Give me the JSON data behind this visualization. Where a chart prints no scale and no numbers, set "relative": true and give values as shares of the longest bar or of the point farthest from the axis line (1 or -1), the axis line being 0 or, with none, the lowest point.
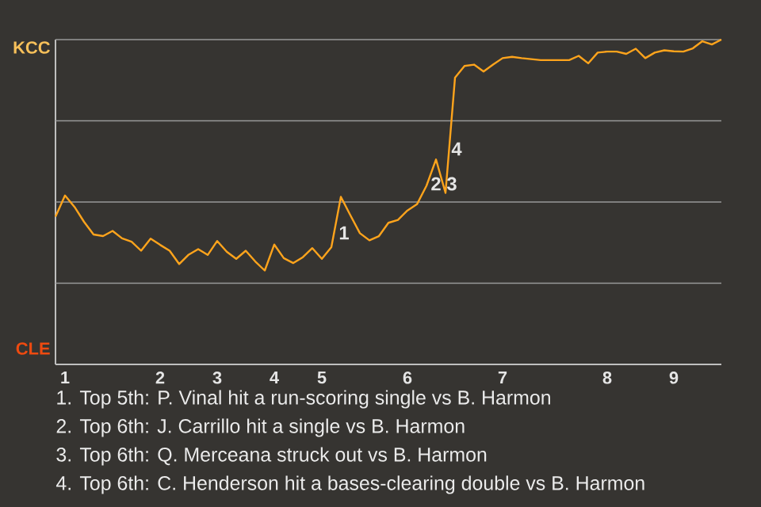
{
  "chart_data": {
    "type": "line",
    "relative": true,
    "categories": [
      null,
      "1",
      null,
      null,
      null,
      null,
      null,
      null,
      null,
      null,
      null,
      "2",
      null,
      null,
      null,
      null,
      null,
      "3",
      null,
      null,
      null,
      null,
      null,
      "4",
      null,
      null,
      null,
      null,
      "5",
      null,
      null,
      null,
      null,
      null,
      null,
      null,
      null,
      "6",
      null,
      null,
      null,
      null,
      null,
      null,
      null,
      null,
      null,
      "7",
      null,
      null,
      null,
      null,
      null,
      null,
      null,
      null,
      null,
      null,
      "8",
      null,
      null,
      null,
      null,
      null,
      null,
      "9",
      null,
      null,
      null,
      null,
      null
    ],
    "series": [
      {
        "color": "#ffa41c",
        "values": [
          0.455,
          0.52,
          0.485,
          0.439,
          0.4,
          0.395,
          0.411,
          0.388,
          0.378,
          0.35,
          0.387,
          0.368,
          0.35,
          0.309,
          0.338,
          0.355,
          0.337,
          0.38,
          0.347,
          0.325,
          0.35,
          0.317,
          0.289,
          0.369,
          0.327,
          0.312,
          0.33,
          0.358,
          0.325,
          0.361,
          0.516,
          0.459,
          0.404,
          0.382,
          0.395,
          0.436,
          0.445,
          0.474,
          0.493,
          0.55,
          0.631,
          0.528,
          0.883,
          0.919,
          0.923,
          0.902,
          0.923,
          0.943,
          0.947,
          0.943,
          0.94,
          0.937,
          0.937,
          0.937,
          0.937,
          0.95,
          0.927,
          0.96,
          0.963,
          0.963,
          0.956,
          0.972,
          0.943,
          0.96,
          0.967,
          0.964,
          0.963,
          0.973,
          0.995,
          0.985,
          1
        ]
      }
    ],
    "grid": "y",
    "annotations": [
      "1",
      "2",
      "3",
      "4",
      "KCC",
      "CLE",
      "1. Top 5th: P. Vinal hit a run-scoring single vs B. Harmon",
      "2. Top 6th: J. Carrillo hit a single vs B. Harmon",
      "3. Top 6th: Q. Merceana struck out vs B. Harmon",
      "4. Top 6th: C. Henderson hit a bases-clearing double vs B. Harmon"
    ]
  }
}
